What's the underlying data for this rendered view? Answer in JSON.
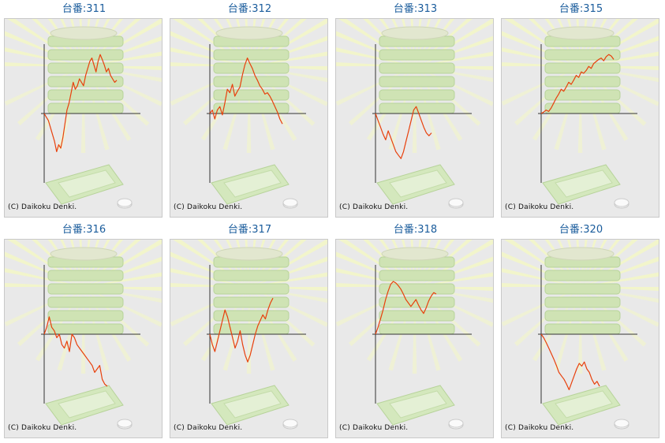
{
  "copyright": "(C) Daikoku Denki.",
  "colors": {
    "line": "#e8400c",
    "axis": "#333333",
    "title": "#1a5c9c",
    "panel_bg": "#e9e9e9"
  },
  "background_icons": [
    "sunburst-rays",
    "stacked-coin-tray",
    "coin-tray",
    "coin"
  ],
  "chart_data": [
    {
      "type": "line",
      "title": "台番:311",
      "ylim": [
        -1,
        1
      ],
      "values": [
        0,
        -0.05,
        -0.1,
        -0.2,
        -0.3,
        -0.4,
        -0.55,
        -0.45,
        -0.5,
        -0.35,
        -0.15,
        0.05,
        0.15,
        0.3,
        0.45,
        0.35,
        0.4,
        0.5,
        0.45,
        0.4,
        0.55,
        0.65,
        0.75,
        0.8,
        0.7,
        0.6,
        0.75,
        0.85,
        0.78,
        0.7,
        0.6,
        0.65,
        0.55,
        0.5,
        0.45,
        0.48
      ]
    },
    {
      "type": "line",
      "title": "台番:312",
      "ylim": [
        -1,
        1
      ],
      "values": [
        0,
        0.05,
        -0.08,
        0.05,
        0.1,
        -0.02,
        0.15,
        0.35,
        0.3,
        0.42,
        0.25,
        0.32,
        0.38,
        0.55,
        0.7,
        0.8,
        0.72,
        0.65,
        0.55,
        0.48,
        0.4,
        0.35,
        0.28,
        0.3,
        0.25,
        0.18,
        0.1,
        0.02,
        -0.08,
        -0.15
      ]
    },
    {
      "type": "line",
      "title": "台番:313",
      "ylim": [
        -1,
        1
      ],
      "values": [
        0,
        -0.1,
        -0.2,
        -0.3,
        -0.38,
        -0.25,
        -0.35,
        -0.45,
        -0.55,
        -0.6,
        -0.65,
        -0.55,
        -0.4,
        -0.25,
        -0.1,
        0.05,
        0.1,
        0.0,
        -0.1,
        -0.2,
        -0.28,
        -0.32,
        -0.28
      ]
    },
    {
      "type": "line",
      "title": "台番:315",
      "ylim": [
        -1,
        1
      ],
      "values": [
        0,
        0.02,
        0.05,
        0.03,
        0.08,
        0.15,
        0.22,
        0.28,
        0.35,
        0.32,
        0.38,
        0.45,
        0.42,
        0.48,
        0.55,
        0.52,
        0.6,
        0.58,
        0.62,
        0.68,
        0.65,
        0.72,
        0.75,
        0.78,
        0.8,
        0.76,
        0.82,
        0.85,
        0.83,
        0.78
      ]
    },
    {
      "type": "line",
      "title": "台番:316",
      "ylim": [
        -1,
        1
      ],
      "values": [
        0,
        0.1,
        0.25,
        0.1,
        0.05,
        -0.05,
        0.0,
        -0.15,
        -0.2,
        -0.1,
        -0.25,
        0.0,
        -0.05,
        -0.15,
        -0.2,
        -0.25,
        -0.3,
        -0.35,
        -0.4,
        -0.45,
        -0.55,
        -0.5,
        -0.45,
        -0.65,
        -0.72,
        -0.75
      ]
    },
    {
      "type": "line",
      "title": "台番:317",
      "ylim": [
        -1,
        1
      ],
      "values": [
        0,
        -0.15,
        -0.25,
        -0.1,
        0.05,
        0.2,
        0.35,
        0.25,
        0.1,
        -0.05,
        -0.2,
        -0.1,
        0.05,
        -0.15,
        -0.3,
        -0.4,
        -0.3,
        -0.15,
        0.0,
        0.12,
        0.2,
        0.28,
        0.22,
        0.35,
        0.45,
        0.52
      ]
    },
    {
      "type": "line",
      "title": "台番:318",
      "ylim": [
        -1,
        1
      ],
      "values": [
        0,
        0.1,
        0.22,
        0.35,
        0.5,
        0.62,
        0.72,
        0.76,
        0.74,
        0.7,
        0.65,
        0.58,
        0.5,
        0.45,
        0.4,
        0.45,
        0.5,
        0.42,
        0.35,
        0.3,
        0.38,
        0.48,
        0.55,
        0.6,
        0.58
      ]
    },
    {
      "type": "line",
      "title": "台番:320",
      "ylim": [
        -1,
        1
      ],
      "values": [
        0,
        -0.05,
        -0.12,
        -0.2,
        -0.28,
        -0.36,
        -0.45,
        -0.55,
        -0.6,
        -0.65,
        -0.72,
        -0.8,
        -0.7,
        -0.6,
        -0.5,
        -0.42,
        -0.46,
        -0.4,
        -0.5,
        -0.55,
        -0.65,
        -0.72,
        -0.68,
        -0.75
      ]
    }
  ]
}
